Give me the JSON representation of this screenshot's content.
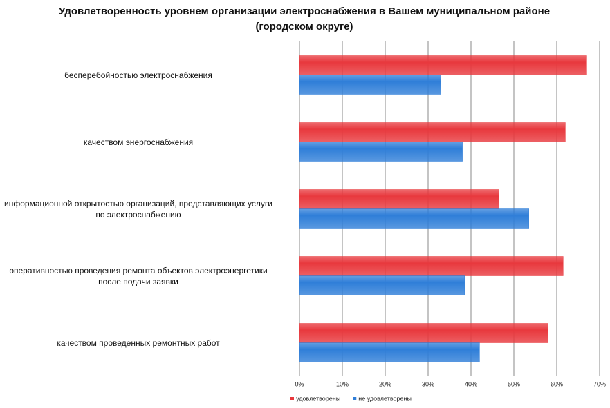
{
  "chart_data": {
    "type": "hbar",
    "title": "Удовлетворенность уровнем организации электроснабжения в Вашем муниципальном районе (городском округе)",
    "categories": [
      "бесперебойностью  электроснабжения",
      "качеством энергоснабжения",
      "информационной открытостью организаций, представляющих услуги\nпо электроснабжению",
      "оперативностью проведения ремонта  объектов электроэнергетики\nпосле подачи заявки",
      "качеством проведенных ремонтных  работ"
    ],
    "series": [
      {
        "name": "удовлетворены",
        "color": "#e8383d",
        "values": [
          67,
          62,
          46.5,
          61.5,
          58
        ]
      },
      {
        "name": "не удовлетворены",
        "color": "#2f7ed8",
        "values": [
          33,
          38,
          53.5,
          38.5,
          42
        ]
      }
    ],
    "xlim": [
      0,
      70
    ],
    "xticks": [
      {
        "value": 0,
        "label": "0%"
      },
      {
        "value": 10,
        "label": "10%"
      },
      {
        "value": 20,
        "label": "20%"
      },
      {
        "value": 30,
        "label": "30%"
      },
      {
        "value": 40,
        "label": "40%"
      },
      {
        "value": 50,
        "label": "50%"
      },
      {
        "value": 60,
        "label": "60%"
      },
      {
        "value": 70,
        "label": "70%"
      }
    ],
    "grid": true,
    "legend": "bottom"
  }
}
